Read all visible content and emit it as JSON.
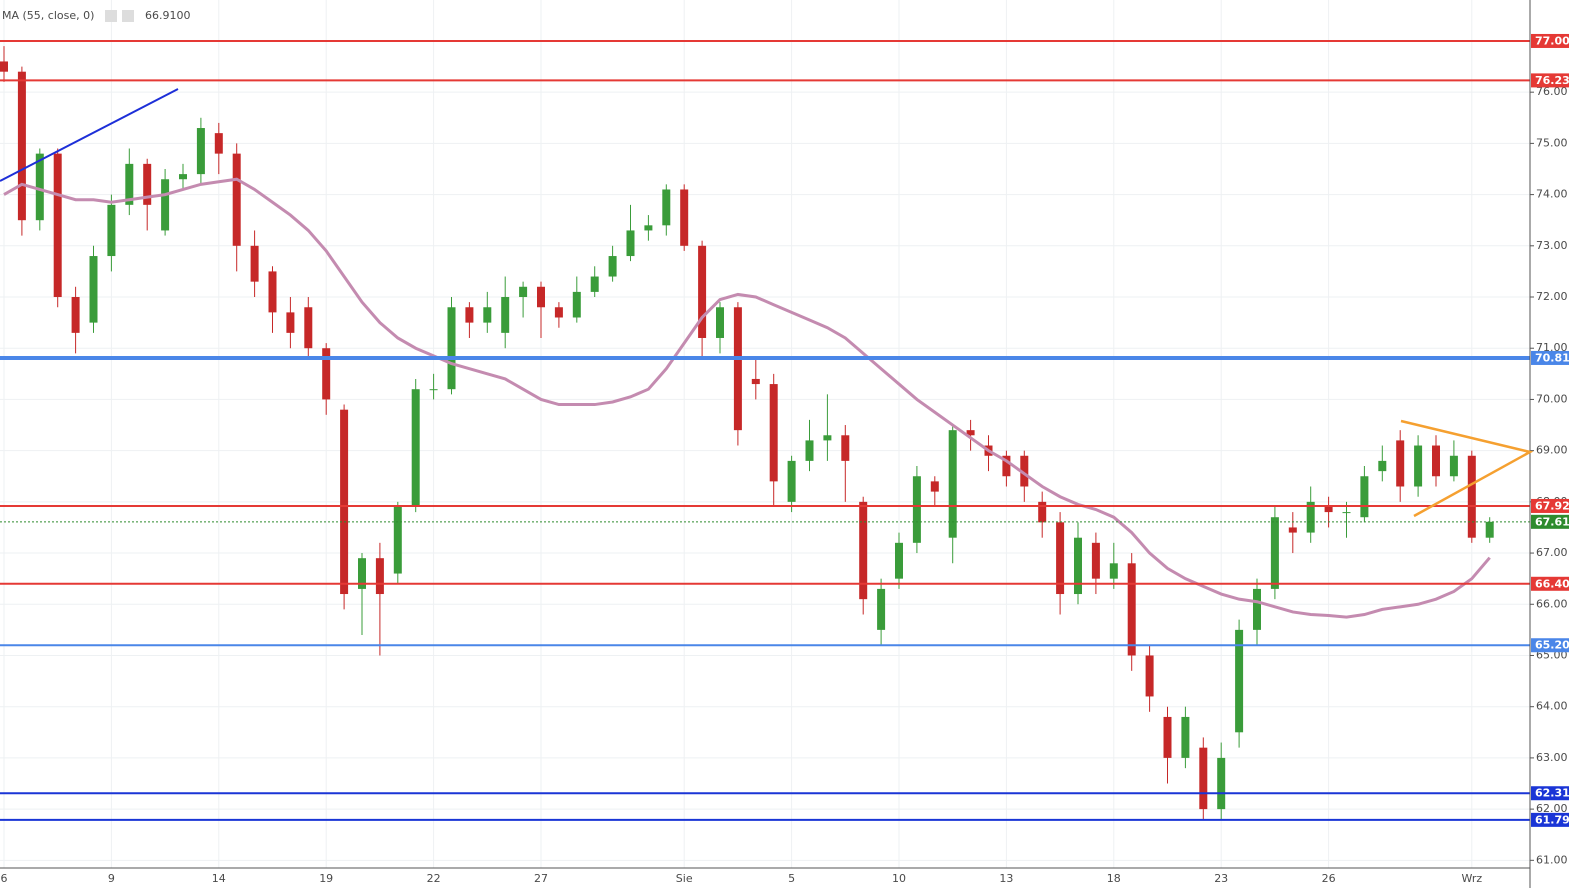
{
  "chart_data": {
    "type": "candlestick",
    "categories": [
      "6",
      null,
      null,
      null,
      null,
      null,
      "9",
      null,
      null,
      null,
      null,
      null,
      "14",
      null,
      null,
      null,
      null,
      null,
      "19",
      null,
      null,
      null,
      null,
      null,
      "22",
      null,
      null,
      null,
      null,
      null,
      "27",
      null,
      null,
      null,
      null,
      null,
      null,
      null,
      "Sie",
      null,
      null,
      null,
      null,
      null,
      "5",
      null,
      null,
      null,
      null,
      null,
      "10",
      null,
      null,
      null,
      null,
      null,
      "13",
      null,
      null,
      null,
      null,
      null,
      "18",
      null,
      null,
      null,
      null,
      null,
      "23",
      null,
      null,
      null,
      null,
      null,
      "26",
      null,
      null,
      null,
      null,
      null,
      null,
      null,
      "Wrz",
      null
    ],
    "open": [
      76.6,
      76.4,
      73.5,
      74.8,
      72.0,
      71.5,
      72.8,
      73.8,
      74.6,
      73.3,
      74.3,
      74.4,
      75.2,
      74.8,
      73.0,
      72.5,
      71.7,
      71.8,
      71.0,
      69.8,
      66.3,
      66.9,
      66.6,
      67.9,
      70.2,
      70.2,
      71.8,
      71.5,
      71.3,
      72.0,
      72.2,
      71.8,
      71.6,
      72.1,
      72.4,
      72.8,
      73.3,
      73.4,
      74.1,
      73.0,
      71.2,
      71.8,
      70.4,
      70.3,
      68.0,
      68.8,
      69.2,
      69.3,
      68.0,
      65.5,
      66.5,
      67.2,
      68.4,
      67.3,
      69.4,
      69.1,
      68.9,
      68.9,
      68.0,
      67.6,
      66.2,
      67.2,
      66.5,
      66.8,
      65.0,
      63.8,
      63.0,
      63.2,
      62.0,
      63.5,
      65.5,
      66.3,
      67.5,
      67.4,
      67.9,
      67.8,
      67.7,
      68.6,
      69.2,
      68.3,
      69.1,
      68.5,
      68.9,
      67.3
    ],
    "high": [
      76.9,
      76.5,
      74.9,
      74.9,
      72.2,
      73.0,
      74.0,
      74.9,
      74.7,
      74.5,
      74.6,
      75.5,
      75.4,
      75.0,
      73.3,
      72.6,
      72.0,
      72.0,
      71.1,
      69.9,
      67.0,
      67.2,
      68.0,
      70.4,
      70.5,
      72.0,
      71.9,
      72.1,
      72.4,
      72.3,
      72.3,
      71.9,
      72.4,
      72.6,
      73.0,
      73.8,
      73.6,
      74.2,
      74.2,
      73.1,
      71.9,
      71.9,
      70.8,
      70.5,
      68.9,
      69.6,
      70.1,
      69.5,
      68.1,
      66.5,
      67.4,
      68.7,
      68.5,
      69.5,
      69.6,
      69.3,
      69.0,
      69.0,
      68.2,
      67.8,
      67.6,
      67.4,
      67.2,
      67.0,
      65.2,
      64.0,
      64.0,
      63.4,
      63.3,
      65.7,
      66.5,
      67.9,
      67.8,
      68.3,
      68.1,
      68.0,
      68.7,
      69.1,
      69.4,
      69.3,
      69.3,
      69.2,
      69.0,
      67.7
    ],
    "low": [
      76.2,
      73.2,
      73.3,
      71.8,
      70.9,
      71.3,
      72.5,
      73.6,
      73.3,
      73.2,
      74.1,
      74.2,
      74.4,
      72.5,
      72.0,
      71.3,
      71.0,
      70.8,
      69.7,
      65.9,
      65.4,
      65.0,
      66.4,
      67.8,
      70.0,
      70.1,
      71.2,
      71.3,
      71.0,
      71.6,
      71.2,
      71.4,
      71.5,
      72.0,
      72.3,
      72.7,
      73.1,
      73.2,
      72.9,
      70.8,
      70.9,
      69.1,
      70.0,
      67.9,
      67.8,
      68.6,
      68.8,
      68.0,
      65.8,
      65.2,
      66.3,
      67.0,
      67.9,
      66.8,
      69.0,
      68.6,
      68.3,
      68.0,
      67.3,
      65.8,
      66.0,
      66.2,
      66.3,
      64.7,
      63.9,
      62.5,
      62.8,
      61.8,
      61.8,
      63.2,
      65.2,
      66.1,
      67.0,
      67.2,
      67.5,
      67.3,
      67.6,
      68.4,
      68.0,
      68.1,
      68.3,
      68.4,
      67.2,
      67.2
    ],
    "close": [
      76.4,
      73.5,
      74.8,
      72.0,
      71.3,
      72.8,
      73.8,
      74.6,
      73.8,
      74.3,
      74.4,
      75.3,
      74.8,
      73.0,
      72.3,
      71.7,
      71.3,
      71.0,
      70.0,
      66.2,
      66.9,
      66.2,
      67.9,
      70.2,
      70.2,
      71.8,
      71.5,
      71.8,
      72.0,
      72.2,
      71.8,
      71.6,
      72.1,
      72.4,
      72.8,
      73.3,
      73.4,
      74.1,
      73.0,
      71.2,
      71.8,
      69.4,
      70.3,
      68.4,
      68.8,
      69.2,
      69.3,
      68.8,
      66.1,
      66.3,
      67.2,
      68.5,
      68.2,
      69.4,
      69.3,
      68.9,
      68.5,
      68.3,
      67.6,
      66.2,
      67.3,
      66.5,
      66.8,
      65.0,
      64.2,
      63.0,
      63.8,
      62.0,
      63.0,
      65.5,
      66.3,
      67.7,
      67.4,
      68.0,
      67.8,
      67.8,
      68.5,
      68.8,
      68.3,
      69.1,
      68.5,
      68.9,
      67.3,
      67.61
    ],
    "up_color": "#3a9c3a",
    "down_color": "#c62828",
    "ma": {
      "name": "MA (55, close, 0)",
      "color": "#c48bb0",
      "last_label": "66.9100",
      "values": [
        74.0,
        74.2,
        74.1,
        74.0,
        73.9,
        73.9,
        73.85,
        73.9,
        73.95,
        74.0,
        74.1,
        74.2,
        74.25,
        74.3,
        74.1,
        73.85,
        73.6,
        73.3,
        72.9,
        72.4,
        71.9,
        71.5,
        71.2,
        71.0,
        70.85,
        70.7,
        70.6,
        70.5,
        70.4,
        70.2,
        70.0,
        69.9,
        69.9,
        69.9,
        69.95,
        70.05,
        70.2,
        70.6,
        71.1,
        71.6,
        71.95,
        72.05,
        72.0,
        71.85,
        71.7,
        71.55,
        71.4,
        71.2,
        70.9,
        70.6,
        70.3,
        70.0,
        69.75,
        69.5,
        69.25,
        69.0,
        68.8,
        68.55,
        68.3,
        68.1,
        67.95,
        67.85,
        67.7,
        67.4,
        67.0,
        66.7,
        66.5,
        66.35,
        66.2,
        66.1,
        66.05,
        65.95,
        65.85,
        65.8,
        65.78,
        65.75,
        65.8,
        65.9,
        65.95,
        66.0,
        66.1,
        66.25,
        66.5,
        66.91
      ]
    },
    "levels": [
      {
        "value": 77,
        "label": "77.00",
        "color": "#e53935",
        "width": 2,
        "style": "solid"
      },
      {
        "value": 76.23,
        "label": "76.23",
        "color": "#e53935",
        "width": 2,
        "style": "solid"
      },
      {
        "value": 70.81,
        "label": "70.81",
        "color": "#4a86e8",
        "width": 4,
        "style": "solid"
      },
      {
        "value": 67.92,
        "label": "67.92",
        "color": "#e53935",
        "width": 2,
        "style": "solid"
      },
      {
        "value": 67.61,
        "label": "67.61",
        "color": "#2e8b2e",
        "width": 1,
        "style": "dotted"
      },
      {
        "value": 66.4,
        "label": "66.40",
        "color": "#e53935",
        "width": 2,
        "style": "solid"
      },
      {
        "value": 65.2,
        "label": "65.20",
        "color": "#4a86e8",
        "width": 2,
        "style": "solid"
      },
      {
        "value": 62.31,
        "label": "62.31",
        "color": "#1a35d6",
        "width": 2,
        "style": "solid"
      },
      {
        "value": 61.79,
        "label": "61.79",
        "color": "#1a35d6",
        "width": 2,
        "style": "solid"
      }
    ],
    "ylim": [
      60.85,
      77.8
    ],
    "yticks": [
      {
        "value": 61,
        "label": "61.00"
      },
      {
        "value": 62,
        "label": "62.00"
      },
      {
        "value": 63,
        "label": "63.00"
      },
      {
        "value": 64,
        "label": "64.00"
      },
      {
        "value": 65,
        "label": "65.00"
      },
      {
        "value": 66,
        "label": "66.00"
      },
      {
        "value": 67,
        "label": "67.00"
      },
      {
        "value": 68,
        "label": "68.00"
      },
      {
        "value": 69,
        "label": "69.00"
      },
      {
        "value": 70,
        "label": "70.00"
      },
      {
        "value": 71,
        "label": "71.00"
      },
      {
        "value": 72,
        "label": "72.00"
      },
      {
        "value": 73,
        "label": "73.00"
      },
      {
        "value": 74,
        "label": "74.00"
      },
      {
        "value": 75,
        "label": "75.00"
      },
      {
        "value": 76,
        "label": "76.00"
      }
    ],
    "grid": true
  }
}
